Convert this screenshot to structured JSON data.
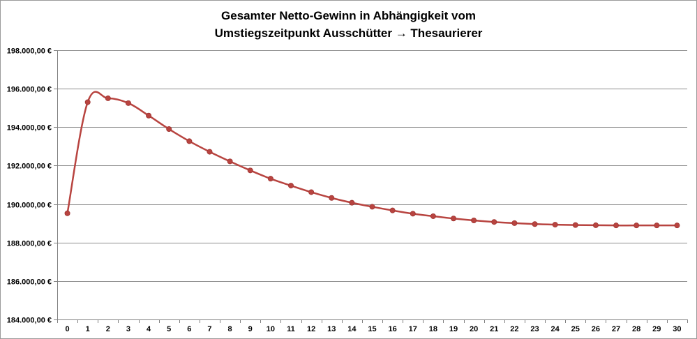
{
  "chart_data": {
    "type": "line",
    "title": "Gesamter Netto-Gewinn in Abhängigkeit vom Umstiegszeitpunkt Ausschütter → Thesaurierer",
    "title_lines": [
      "Gesamter Netto-Gewinn in Abhängigkeit vom",
      "Umstiegszeitpunkt Ausschütter → Thesaurierer"
    ],
    "xlabel": "",
    "ylabel": "",
    "x": [
      0,
      1,
      2,
      3,
      4,
      5,
      6,
      7,
      8,
      9,
      10,
      11,
      12,
      13,
      14,
      15,
      16,
      17,
      18,
      19,
      20,
      21,
      22,
      23,
      24,
      25,
      26,
      27,
      28,
      29,
      30
    ],
    "x_tick_labels": [
      "0",
      "1",
      "2",
      "3",
      "4",
      "5",
      "6",
      "7",
      "8",
      "9",
      "10",
      "11",
      "12",
      "13",
      "14",
      "15",
      "16",
      "17",
      "18",
      "19",
      "20",
      "21",
      "22",
      "23",
      "24",
      "25",
      "26",
      "27",
      "28",
      "29",
      "30"
    ],
    "y_tick_values": [
      184000,
      186000,
      188000,
      190000,
      192000,
      194000,
      196000,
      198000
    ],
    "y_tick_labels": [
      "184.000,00 €",
      "186.000,00 €",
      "188.000,00 €",
      "190.000,00 €",
      "192.000,00 €",
      "194.000,00 €",
      "196.000,00 €",
      "198.000,00 €"
    ],
    "ylim": [
      184000,
      198000
    ],
    "grid": "horizontal",
    "legend": "none",
    "series": [
      {
        "color": "#b84440",
        "values": [
          189520,
          195300,
          195500,
          195250,
          194600,
          193900,
          193270,
          192720,
          192220,
          191750,
          191320,
          190960,
          190620,
          190320,
          190070,
          189860,
          189670,
          189500,
          189370,
          189250,
          189150,
          189070,
          189010,
          188960,
          188930,
          188910,
          188900,
          188890,
          188890,
          188890,
          188890
        ]
      }
    ]
  }
}
